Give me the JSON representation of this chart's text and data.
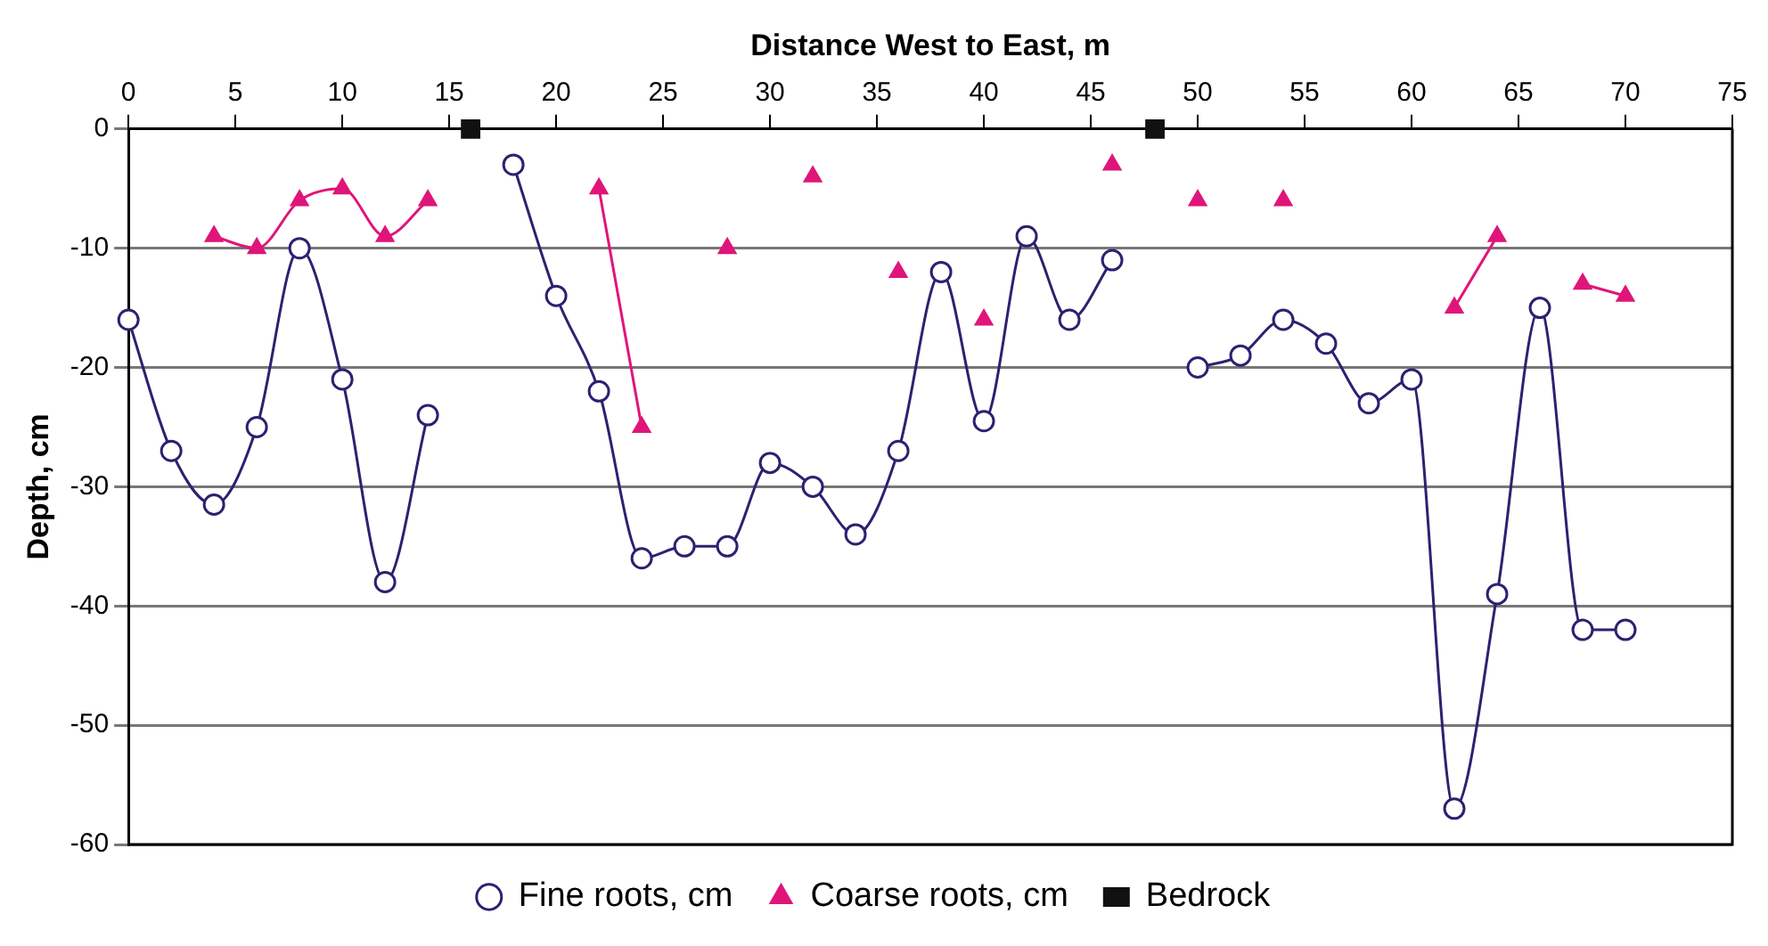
{
  "chart_data": {
    "type": "line",
    "xlabel": "Distance West to East, m",
    "ylabel": "Depth, cm",
    "xlim": [
      0,
      75
    ],
    "xticks": [
      0,
      5,
      10,
      15,
      20,
      25,
      30,
      35,
      40,
      45,
      50,
      55,
      60,
      65,
      70,
      75
    ],
    "ylim": [
      -60,
      0
    ],
    "yticks": [
      -60,
      -50,
      -40,
      -30,
      -20,
      -10,
      0
    ],
    "grid": "y",
    "legend": "bottom",
    "series": [
      {
        "name": "Fine roots, cm",
        "type": "line",
        "marker": "circle",
        "color": "#2b2270",
        "x": [
          0,
          2,
          4,
          6,
          8,
          10,
          12,
          14,
          16,
          18,
          20,
          22,
          24,
          26,
          28,
          30,
          32,
          34,
          36,
          38,
          40,
          42,
          44,
          46,
          48,
          50,
          52,
          54,
          56,
          58,
          60,
          62,
          64,
          66,
          68,
          70
        ],
        "values": [
          -16,
          -27,
          -31.5,
          -25,
          -10,
          -21,
          -38,
          -24,
          null,
          -3,
          -14,
          -22,
          -36,
          -35,
          -35,
          -28,
          -30,
          -34,
          -27,
          -12,
          -24.5,
          -9,
          -16,
          -11,
          null,
          -20,
          -19,
          -16,
          -18,
          -23,
          -21,
          -57,
          -39,
          -15,
          -42,
          -42
        ]
      },
      {
        "name": "Coarse roots, cm",
        "type": "line",
        "marker": "triangle",
        "color": "#e0157a",
        "x": [
          4,
          6,
          8,
          10,
          12,
          14,
          16,
          22,
          24,
          26,
          28,
          30,
          32,
          34,
          36,
          38,
          40,
          42,
          46,
          48,
          50,
          52,
          54,
          58,
          62,
          64,
          66,
          68,
          70
        ],
        "values": [
          -9,
          -10,
          -6,
          -5,
          -9,
          -6,
          null,
          -5,
          -25,
          null,
          -10,
          null,
          -4,
          null,
          -12,
          null,
          -16,
          null,
          -3,
          null,
          -6,
          null,
          -6,
          null,
          -15,
          -9,
          null,
          -13,
          -14
        ]
      },
      {
        "name": "Bedrock",
        "type": "scatter",
        "marker": "square",
        "color": "#111111",
        "x": [
          16,
          48
        ],
        "values": [
          0,
          0
        ]
      }
    ]
  }
}
